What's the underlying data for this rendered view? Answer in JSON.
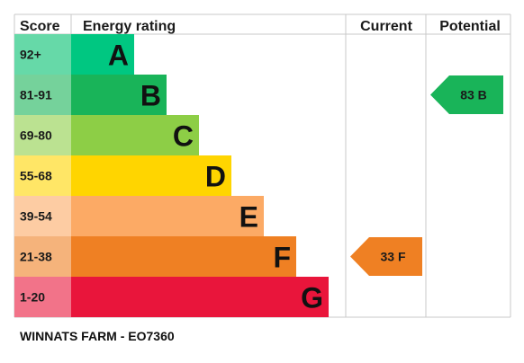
{
  "headers": {
    "score": "Score",
    "rating": "Energy rating",
    "current": "Current",
    "potential": "Potential"
  },
  "chart_data": {
    "type": "bar",
    "bands": [
      {
        "score": "92+",
        "letter": "A",
        "bar_color": "#00c781",
        "score_color": "#66d9a8"
      },
      {
        "score": "81-91",
        "letter": "B",
        "bar_color": "#19b459",
        "score_color": "#75d29b"
      },
      {
        "score": "69-80",
        "letter": "C",
        "bar_color": "#8dce46",
        "score_color": "#bbe291"
      },
      {
        "score": "55-68",
        "letter": "D",
        "bar_color": "#ffd500",
        "score_color": "#ffe666"
      },
      {
        "score": "39-54",
        "letter": "E",
        "bar_color": "#fcaa65",
        "score_color": "#fdcca3"
      },
      {
        "score": "21-38",
        "letter": "F",
        "bar_color": "#ef8023",
        "score_color": "#f5b37b"
      },
      {
        "score": "1-20",
        "letter": "G",
        "bar_color": "#e9153b",
        "score_color": "#f27389"
      }
    ],
    "current": {
      "value": 33,
      "letter": "F",
      "label": "33  F",
      "color": "#ef8023"
    },
    "potential": {
      "value": 83,
      "letter": "B",
      "label": "83  B",
      "color": "#19b459"
    }
  },
  "footer": "WINNATS FARM - EO7360"
}
